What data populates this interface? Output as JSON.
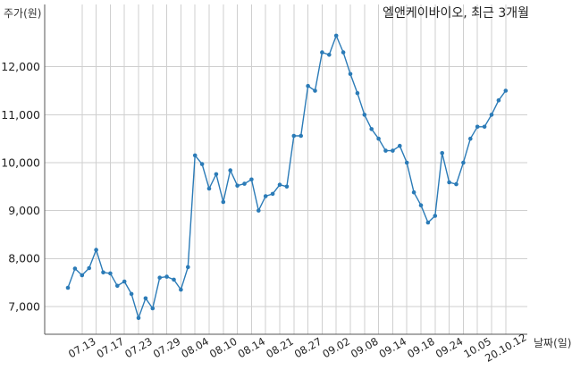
{
  "chart_data": {
    "type": "line",
    "title": "엘앤케이바이오, 최근 3개월",
    "ylabel": "주가(원)",
    "xlabel": "날짜(일)",
    "ylim": [
      6420,
      13300
    ],
    "grid": true,
    "yticks": [
      7000,
      8000,
      9000,
      10000,
      11000,
      12000
    ],
    "ytick_labels": [
      "7,000",
      "8,000",
      "9,000",
      "10,000",
      "11,000",
      "12,000"
    ],
    "xticks": [
      {
        "x": "07.13",
        "label": "07.13"
      },
      {
        "x": "07.17",
        "label": "07.17"
      },
      {
        "x": "07.23",
        "label": "07.23"
      },
      {
        "x": "07.29",
        "label": "07.29"
      },
      {
        "x": "08.04",
        "label": "08.04"
      },
      {
        "x": "08.10",
        "label": "08.10"
      },
      {
        "x": "08.14",
        "label": "08.14"
      },
      {
        "x": "08.21",
        "label": "08.21"
      },
      {
        "x": "08.27",
        "label": "08.27"
      },
      {
        "x": "09.02",
        "label": "09.02"
      },
      {
        "x": "09.08",
        "label": "09.08"
      },
      {
        "x": "09.14",
        "label": "09.14"
      },
      {
        "x": "09.18",
        "label": "09.18"
      },
      {
        "x": "09.24",
        "label": "09.24"
      },
      {
        "x": "10.05",
        "label": "10.05"
      },
      {
        "x": "10.12",
        "label": "20.10.12"
      }
    ],
    "series": [
      {
        "color": "#2b7bb7",
        "x": [
          "07.09",
          "07.10",
          "07.13",
          "07.14",
          "07.15",
          "07.16",
          "07.17",
          "07.20",
          "07.21",
          "07.22",
          "07.23",
          "07.24",
          "07.27",
          "07.28",
          "07.29",
          "07.30",
          "07.31",
          "08.03",
          "08.04",
          "08.05",
          "08.06",
          "08.07",
          "08.10",
          "08.11",
          "08.12",
          "08.13",
          "08.14",
          "08.18",
          "08.19",
          "08.20",
          "08.21",
          "08.24",
          "08.25",
          "08.26",
          "08.27",
          "08.28",
          "08.31",
          "09.01",
          "09.02",
          "09.03",
          "09.04",
          "09.07",
          "09.08",
          "09.09",
          "09.10",
          "09.11",
          "09.14",
          "09.15",
          "09.16",
          "09.17",
          "09.18",
          "09.21",
          "09.22",
          "09.23",
          "09.24",
          "09.25",
          "09.28",
          "09.29",
          "10.05",
          "10.06",
          "10.07",
          "10.08",
          "10.12"
        ],
        "y": [
          7390,
          7790,
          7650,
          7800,
          8180,
          7710,
          7690,
          7430,
          7520,
          7260,
          6760,
          7170,
          6960,
          7600,
          7620,
          7560,
          7350,
          7820,
          10150,
          9970,
          9460,
          9760,
          9180,
          9840,
          9520,
          9560,
          9650,
          9000,
          9300,
          9350,
          9540,
          9500,
          10560,
          10560,
          11600,
          11500,
          12300,
          12250,
          12650,
          12300,
          11850,
          11450,
          11000,
          10700,
          10500,
          10250,
          10250,
          10350,
          10000,
          9380,
          9110,
          8750,
          8890,
          10200,
          9590,
          9550,
          10000,
          10500,
          10750,
          10750,
          11000,
          11300,
          11500
        ]
      }
    ]
  }
}
